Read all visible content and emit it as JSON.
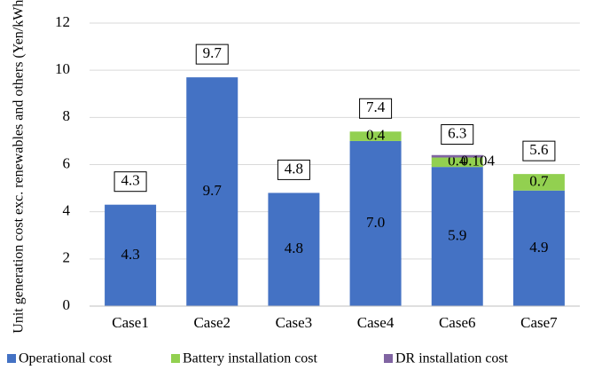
{
  "chart_data": {
    "type": "stacked_bar",
    "y_label": "Unit generation cost exc. renewables and others (Yen/kWh)",
    "categories": [
      "Case1",
      "Case2",
      "Case3",
      "Case4",
      "Case6",
      "Case7"
    ],
    "series": [
      {
        "name": "Operational cost",
        "color": "#4472c4",
        "values": [
          4.3,
          9.7,
          4.8,
          7.0,
          5.9,
          4.9
        ],
        "value_labels": [
          "4.3",
          "9.7",
          "4.8",
          "7.0",
          "5.9",
          "4.9"
        ]
      },
      {
        "name": "Battery installation cost",
        "color": "#92d050",
        "values": [
          null,
          null,
          null,
          0.4,
          0.4,
          0.7
        ],
        "value_labels": [
          null,
          null,
          null,
          "0.4",
          "0.4",
          "0.7"
        ]
      },
      {
        "name": "DR installation cost",
        "color": "#8064a2",
        "values": [
          null,
          null,
          null,
          null,
          0.104,
          null
        ]
      }
    ],
    "totals": [
      4.3,
      9.7,
      4.8,
      7.4,
      6.3,
      5.6
    ],
    "ylim": [
      0,
      12
    ],
    "yticks": [
      0,
      2,
      4,
      6,
      8,
      10,
      12
    ],
    "grid": true
  }
}
